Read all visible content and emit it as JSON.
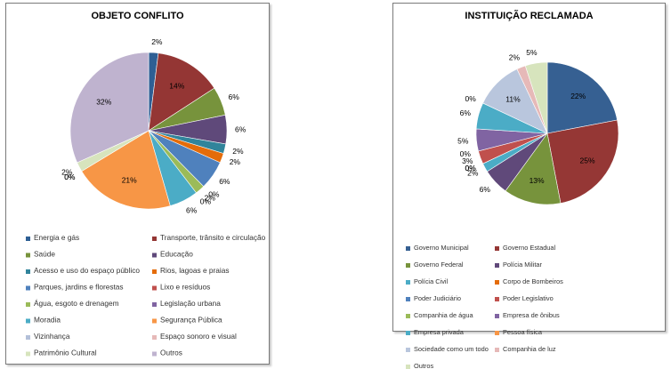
{
  "chart_data": [
    {
      "type": "pie",
      "title": "OBJETO CONFLITO",
      "legend_position": "bottom",
      "categories": [
        "Energia e gás",
        "Transporte, trânsito e circulação",
        "Saúde",
        "Educação",
        "Acesso e uso do espaço público",
        "Rios, lagoas e praias",
        "Parques, jardins e florestas",
        "Lixo e resíduos",
        "Água, esgoto e drenagem",
        "Legislação urbana",
        "Moradia",
        "Segurança Pública",
        "Vizinhança",
        "Espaço sonoro e visual",
        "Patrimônio Cultural",
        "Outros"
      ],
      "values": [
        2,
        14,
        6,
        6,
        2,
        2,
        6,
        0,
        2,
        0,
        6,
        21,
        0,
        0,
        2,
        32
      ],
      "data_labels": [
        "2%",
        "14%",
        "6%",
        "6%",
        "2%",
        "2%",
        "6%",
        "0%",
        "2%",
        "0%",
        "6%",
        "21%",
        "0%",
        "0%",
        "2%",
        "32%"
      ],
      "colors": [
        "#2e5f94",
        "#943634",
        "#77933c",
        "#5f497a",
        "#31849b",
        "#e46c0a",
        "#4f81bd",
        "#c0504d",
        "#9bbb59",
        "#8064a2",
        "#4bacc6",
        "#f79646",
        "#b3c0d9",
        "#e6b9b8",
        "#d7e4bd",
        "#bfb3cf"
      ]
    },
    {
      "type": "pie",
      "title": "INSTITUIÇÃO  RECLAMADA",
      "legend_position": "bottom",
      "categories": [
        "Governo Municipal",
        "Governo Estadual",
        "Governo Federal",
        "Polícia Militar",
        "Polícia Civil",
        "Corpo de Bombeiros",
        "Poder Judiciário",
        "Poder Legislativo",
        "Companhia de água",
        "Empresa de ônibus",
        "Empresa privada",
        "Pessoa física",
        "Sociedade como um todo",
        "Companhia de luz",
        "Outros"
      ],
      "values": [
        22,
        25,
        13,
        6,
        2,
        0,
        0,
        3,
        0,
        5,
        6,
        0,
        11,
        2,
        5
      ],
      "data_labels": [
        "22%",
        "25%",
        "13%",
        "6%",
        "2%",
        "0%",
        "0%",
        "3%",
        "0%",
        "5%",
        "6%",
        "0%",
        "11%",
        "2%",
        "5%"
      ],
      "colors": [
        "#366092",
        "#953735",
        "#77933c",
        "#60497a",
        "#4bacc6",
        "#e46c0a",
        "#4f81bd",
        "#c0504d",
        "#9bbb59",
        "#8064a2",
        "#4bacc6",
        "#f79646",
        "#b9c6dd",
        "#e6b9b8",
        "#d7e4bd"
      ]
    }
  ]
}
